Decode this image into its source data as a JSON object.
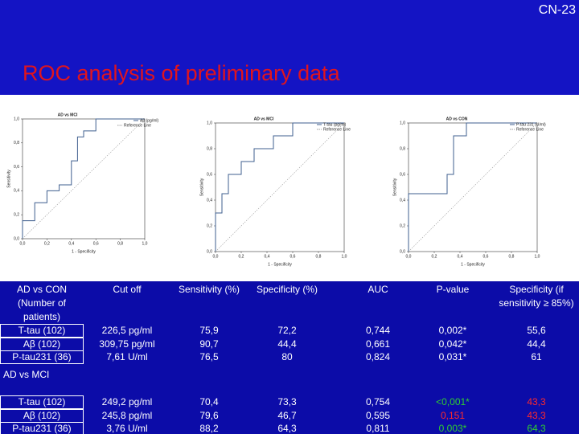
{
  "header": {
    "code": "CN-23",
    "title": "ROC analysis of preliminary data"
  },
  "chart_data": [
    {
      "type": "line",
      "title": "AD vs MCI",
      "xlabel": "1 - Specificity",
      "ylabel": "Sensitivity",
      "xlim": [
        0,
        1
      ],
      "ylim": [
        0,
        1
      ],
      "grid": false,
      "legend": "top-right",
      "xticks": [
        {
          "value": 0,
          "label": "0,0"
        },
        {
          "value": 0.2,
          "label": "0,2"
        },
        {
          "value": 0.4,
          "label": "0,4"
        },
        {
          "value": 0.6,
          "label": "0,6"
        },
        {
          "value": 0.8,
          "label": "0,8"
        },
        {
          "value": 1,
          "label": "1,0"
        }
      ],
      "yticks": [
        {
          "value": 0,
          "label": "0,0"
        },
        {
          "value": 0.2,
          "label": "0,2"
        },
        {
          "value": 0.4,
          "label": "0,4"
        },
        {
          "value": 0.6,
          "label": "0,6"
        },
        {
          "value": 0.8,
          "label": "0,8"
        },
        {
          "value": 1,
          "label": "1,0"
        }
      ],
      "series": [
        {
          "name": "Aβ (pg/ml)",
          "color": "#3f5f8f",
          "dash": false,
          "x": [
            0,
            0,
            0.1,
            0.1,
            0.2,
            0.2,
            0.3,
            0.3,
            0.4,
            0.4,
            0.45,
            0.45,
            0.5,
            0.5,
            0.6,
            0.6,
            1
          ],
          "values": [
            0,
            0.15,
            0.15,
            0.3,
            0.3,
            0.4,
            0.4,
            0.45,
            0.45,
            0.65,
            0.65,
            0.85,
            0.85,
            0.9,
            0.9,
            1,
            1
          ]
        },
        {
          "name": "Reference Line",
          "color": "#9a9a9a",
          "dash": true,
          "x": [
            0,
            1
          ],
          "values": [
            0,
            1
          ]
        }
      ]
    },
    {
      "type": "line",
      "title": "AD vs MCI",
      "xlabel": "1 - Specificity",
      "ylabel": "Sensitivity",
      "xlim": [
        0,
        1
      ],
      "ylim": [
        0,
        1
      ],
      "grid": false,
      "legend": "top-right",
      "xticks": [
        {
          "value": 0,
          "label": "0,0"
        },
        {
          "value": 0.2,
          "label": "0,2"
        },
        {
          "value": 0.4,
          "label": "0,4"
        },
        {
          "value": 0.6,
          "label": "0,6"
        },
        {
          "value": 0.8,
          "label": "0,8"
        },
        {
          "value": 1,
          "label": "1,0"
        }
      ],
      "yticks": [
        {
          "value": 0,
          "label": "0,0"
        },
        {
          "value": 0.2,
          "label": "0,2"
        },
        {
          "value": 0.4,
          "label": "0,4"
        },
        {
          "value": 0.6,
          "label": "0,6"
        },
        {
          "value": 0.8,
          "label": "0,8"
        },
        {
          "value": 1,
          "label": "1,0"
        }
      ],
      "series": [
        {
          "name": "T-tau (pg/ml)",
          "color": "#3f5f8f",
          "dash": false,
          "x": [
            0,
            0,
            0.05,
            0.05,
            0.1,
            0.1,
            0.2,
            0.2,
            0.3,
            0.3,
            0.45,
            0.45,
            0.6,
            0.6,
            1
          ],
          "values": [
            0,
            0.3,
            0.3,
            0.45,
            0.45,
            0.6,
            0.6,
            0.7,
            0.7,
            0.8,
            0.8,
            0.9,
            0.9,
            1,
            1
          ]
        },
        {
          "name": "Reference Line",
          "color": "#9a9a9a",
          "dash": true,
          "x": [
            0,
            1
          ],
          "values": [
            0,
            1
          ]
        }
      ]
    },
    {
      "type": "line",
      "title": "AD vs CON",
      "xlabel": "1 - Specificity",
      "ylabel": "Sensitivity",
      "xlim": [
        0,
        1
      ],
      "ylim": [
        0,
        1
      ],
      "grid": false,
      "legend": "top-right",
      "xticks": [
        {
          "value": 0,
          "label": "0,0"
        },
        {
          "value": 0.2,
          "label": "0,2"
        },
        {
          "value": 0.4,
          "label": "0,4"
        },
        {
          "value": 0.6,
          "label": "0,6"
        },
        {
          "value": 0.8,
          "label": "0,8"
        },
        {
          "value": 1,
          "label": "1,0"
        }
      ],
      "yticks": [
        {
          "value": 0,
          "label": "0,0"
        },
        {
          "value": 0.2,
          "label": "0,2"
        },
        {
          "value": 0.4,
          "label": "0,4"
        },
        {
          "value": 0.6,
          "label": "0,6"
        },
        {
          "value": 0.8,
          "label": "0,8"
        },
        {
          "value": 1,
          "label": "1,0"
        }
      ],
      "series": [
        {
          "name": "P-tau 231 (U/ml)",
          "color": "#3f5f8f",
          "dash": false,
          "x": [
            0,
            0,
            0.3,
            0.3,
            0.35,
            0.35,
            0.45,
            0.45,
            1
          ],
          "values": [
            0,
            0.45,
            0.45,
            0.6,
            0.6,
            0.9,
            0.9,
            1,
            1
          ]
        },
        {
          "name": "Reference Line",
          "color": "#9a9a9a",
          "dash": true,
          "x": [
            0,
            1
          ],
          "values": [
            0,
            1
          ]
        }
      ]
    }
  ],
  "table": {
    "header": [
      "AD vs CON (Number of patients)",
      "Cut off",
      "Sensitivity (%)",
      "Specificity (%)",
      "AUC",
      "P-value",
      "Specificity (if sensitivity ≥ 85%)"
    ],
    "rows_con": [
      [
        "T-tau (102)",
        "226,5 pg/ml",
        "75,9",
        "72,2",
        "0,744",
        "0,002*",
        "55,6"
      ],
      [
        "Aβ (102)",
        "309,75 pg/ml",
        "90,7",
        "44,4",
        "0,661",
        "0,042*",
        "44,4"
      ],
      [
        "P-tau231 (36)",
        "7,61 U/ml",
        "76,5",
        "80",
        "0,824",
        "0,031*",
        "61"
      ]
    ],
    "section_mci": "AD vs MCI",
    "rows_mci": [
      [
        "T-tau (102)",
        "249,2 pg/ml",
        "70,4",
        "73,3",
        "0,754",
        "<0,001*",
        "43,3"
      ],
      [
        "Aβ (102)",
        "245,8 pg/ml",
        "79,6",
        "46,7",
        "0,595",
        "0,151",
        "43,3"
      ],
      [
        "P-tau231 (36)",
        "3,76 U/ml",
        "88,2",
        "64,3",
        "0,811",
        "0,003*",
        "64,3"
      ]
    ]
  }
}
